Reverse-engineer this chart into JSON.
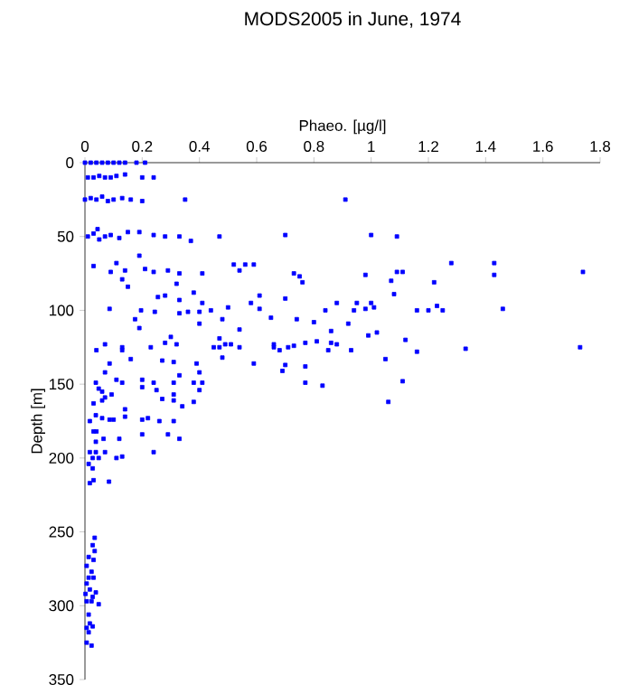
{
  "chart_data": {
    "type": "scatter",
    "title": "MODS2005 in June, 1974",
    "xlabel": "Phaeo. [µg/l]",
    "ylabel": "Depth [m]",
    "color": "#0000ff",
    "marker": "square",
    "xlim": [
      0,
      1.8
    ],
    "xticks": [
      0,
      0.2,
      0.4,
      0.6,
      0.8,
      1,
      1.2,
      1.4,
      1.6,
      1.8
    ],
    "ylim": [
      350,
      0
    ],
    "yticks": [
      0,
      50,
      100,
      150,
      200,
      250,
      300,
      350
    ],
    "x": [
      0,
      0.02,
      0.04,
      0.06,
      0.08,
      0.1,
      0.12,
      0.14,
      0.18,
      0.21,
      0.01,
      0.03,
      0.05,
      0.07,
      0.09,
      0.11,
      0.14,
      0.2,
      0.24,
      0.0,
      0.02,
      0.04,
      0.06,
      0.08,
      0.1,
      0.13,
      0.16,
      0.2,
      0.35,
      0.91,
      0.01,
      0.03,
      0.044,
      0.05,
      0.07,
      0.09,
      0.12,
      0.15,
      0.19,
      0.24,
      0.28,
      0.33,
      0.37,
      0.47,
      0.7,
      1.0,
      1.09,
      0.03,
      0.11,
      0.19,
      0.09,
      0.14,
      0.21,
      0.24,
      0.29,
      0.33,
      0.32,
      0.41,
      0.52,
      0.56,
      0.59,
      0.54,
      0.73,
      0.75,
      0.76,
      0.98,
      1.07,
      1.09,
      1.11,
      1.22,
      1.28,
      1.43,
      1.43,
      1.74,
      0.15,
      0.13,
      0.38,
      0.086,
      0.196,
      0.244,
      0.175,
      0.19,
      0.255,
      0.28,
      0.33,
      0.33,
      0.36,
      0.4,
      0.41,
      0.44,
      0.5,
      0.48,
      0.4,
      0.54,
      0.58,
      0.61,
      0.61,
      0.65,
      0.7,
      0.74,
      0.8,
      0.84,
      0.86,
      0.88,
      0.92,
      0.94,
      0.95,
      0.98,
      1.0,
      1.01,
      0.99,
      1.02,
      1.08,
      1.12,
      1.16,
      1.2,
      1.23,
      1.25,
      1.46,
      0.04,
      0.07,
      0.13,
      0.13,
      0.16,
      0.23,
      0.3,
      0.28,
      0.32,
      0.27,
      0.31,
      0.39,
      0.45,
      0.47,
      0.47,
      0.49,
      0.51,
      0.48,
      0.54,
      0.59,
      0.66,
      0.66,
      0.68,
      0.7,
      0.69,
      0.71,
      0.73,
      0.77,
      0.77,
      0.77,
      0.81,
      0.85,
      0.86,
      0.88,
      0.83,
      0.93,
      1.05,
      1.06,
      1.11,
      1.16,
      1.33,
      1.73,
      0.4,
      0.33,
      0.38,
      0.41,
      0.4,
      0.38,
      0.34,
      0.31,
      0.31,
      0.27,
      0.25,
      0.24,
      0.2,
      0.2,
      0.2,
      0.22,
      0.26,
      0.31,
      0.31,
      0.14,
      0.14,
      0.11,
      0.13,
      0.093,
      0.086,
      0.07,
      0.038,
      0.048,
      0.06,
      0.03,
      0.06,
      0.07,
      0.038,
      0.017,
      0.06,
      0.086,
      0.1,
      0.03,
      0.04,
      0.065,
      0.038,
      0.12,
      0.2,
      0.29,
      0.33,
      0.24,
      0.11,
      0.13,
      0.017,
      0.038,
      0.07,
      0.027,
      0.048,
      0.013,
      0.027,
      0.03,
      0.084,
      0.017,
      0.034,
      0.027,
      0.034,
      0.013,
      0.03,
      0.006,
      0.023,
      0.013,
      0.03,
      0.006,
      0.017,
      0.038,
      0.002,
      0.027,
      0.006,
      0.023,
      0.048,
      0.013,
      0.017,
      0.006,
      0.027,
      0.013,
      0.006,
      0.023
    ],
    "values": [
      0,
      0,
      0,
      0,
      0,
      0,
      0,
      0,
      0,
      0,
      10,
      10,
      9,
      10,
      10,
      9,
      8,
      10,
      10,
      25,
      24,
      25,
      23,
      26,
      25,
      24,
      25,
      26,
      25,
      25,
      50,
      48,
      45,
      52,
      50,
      49,
      51,
      47,
      47,
      49,
      50,
      50,
      53,
      50,
      49,
      49,
      50,
      70,
      68,
      63,
      74,
      73,
      72,
      74,
      73,
      75,
      82,
      75,
      69,
      69,
      69,
      73,
      75,
      77,
      81,
      76,
      80,
      74,
      74,
      81,
      68,
      68,
      76,
      74,
      84,
      79,
      88,
      99,
      100,
      101,
      106,
      112,
      91,
      90,
      93,
      102,
      101,
      101,
      95,
      100,
      98,
      106,
      109,
      113,
      95,
      99,
      90,
      105,
      92,
      106,
      108,
      100,
      114,
      95,
      109,
      100,
      95,
      99,
      95,
      98,
      117,
      115,
      89,
      120,
      100,
      100,
      97,
      100,
      99,
      127,
      123,
      125,
      127,
      133,
      125,
      118,
      122,
      123,
      134,
      135,
      136,
      125,
      119,
      125,
      123,
      123,
      132,
      125,
      136,
      123,
      125,
      127,
      137,
      141,
      125,
      124,
      122,
      138,
      149,
      121,
      127,
      122,
      123,
      151,
      127,
      133,
      162,
      148,
      128,
      126,
      125,
      142,
      144,
      149,
      149,
      154,
      162,
      165,
      149,
      161,
      160,
      154,
      149,
      147,
      152,
      174,
      173,
      175,
      157,
      175,
      167,
      172,
      147,
      149,
      157,
      136,
      142,
      149,
      153,
      155,
      163,
      161,
      159,
      171,
      175,
      173,
      174,
      174,
      182,
      182,
      187,
      189,
      187,
      184,
      184,
      187,
      196,
      200,
      199,
      196,
      196,
      196,
      200,
      200,
      204,
      207,
      215,
      216,
      217,
      254,
      259,
      263,
      267,
      269,
      273,
      277,
      281,
      281,
      285,
      289,
      291,
      292,
      294,
      297,
      297,
      299,
      306,
      312,
      315,
      314,
      318,
      325,
      327
    ]
  }
}
